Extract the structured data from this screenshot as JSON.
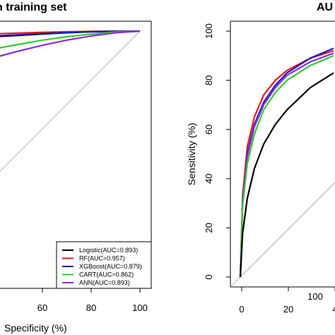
{
  "chart_data": [
    {
      "type": "line",
      "title": "n training set",
      "xlabel": "Specificity (%)",
      "ylabel": "",
      "xlim": [
        100,
        0
      ],
      "ylim": [
        0,
        100
      ],
      "x_ticks": [
        "60",
        "80",
        "100"
      ],
      "y_ticks": [],
      "grid": false,
      "legend_position": "bottom-right",
      "legend": [
        {
          "label": "Logistic(AUC=0.893)",
          "color": "#000000"
        },
        {
          "label": "RF(AUC=0.957)",
          "color": "#e41a1c"
        },
        {
          "label": "XGBoost(AUC=0.879)",
          "color": "#1f1fb4"
        },
        {
          "label": "CART(AUC=0.862)",
          "color": "#33cc33"
        },
        {
          "label": "ANN(AUC=0.893)",
          "color": "#8a2be2"
        }
      ],
      "series": [
        {
          "name": "Logistic(AUC=0.893)",
          "color": "#000000",
          "x": [
            36,
            50,
            60,
            70,
            80,
            90,
            100
          ],
          "y": [
            97.5,
            98.2,
            98.8,
            99.3,
            99.7,
            99.9,
            100
          ]
        },
        {
          "name": "RF(AUC=0.957)",
          "color": "#e41a1c",
          "x": [
            36,
            50,
            60,
            70,
            80,
            90,
            100
          ],
          "y": [
            98.8,
            99.2,
            99.5,
            99.7,
            99.9,
            100,
            100
          ]
        },
        {
          "name": "XGBoost(AUC=0.879)",
          "color": "#1f1fb4",
          "x": [
            36,
            50,
            60,
            70,
            80,
            90,
            100
          ],
          "y": [
            97.8,
            98.5,
            99.0,
            99.4,
            99.7,
            99.9,
            100
          ]
        },
        {
          "name": "CART(AUC=0.862)",
          "color": "#33cc33",
          "x": [
            36,
            50,
            60,
            70,
            80,
            90,
            100
          ],
          "y": [
            92.0,
            94.5,
            96.3,
            97.7,
            98.8,
            99.6,
            100
          ]
        },
        {
          "name": "ANN(AUC=0.893)",
          "color": "#8a2be2",
          "x": [
            36,
            50,
            60,
            70,
            80,
            90,
            100
          ],
          "y": [
            88.0,
            91.8,
            94.2,
            96.3,
            98.0,
            99.3,
            100
          ]
        }
      ]
    },
    {
      "type": "line",
      "title": "AU",
      "xlabel": "",
      "ylabel": "Sensitivity (%)",
      "xlim": [
        100,
        0
      ],
      "ylim": [
        0,
        100
      ],
      "x_ticks": [
        "0",
        "20",
        "4"
      ],
      "y_ticks": [
        "0",
        "20",
        "40",
        "60",
        "80",
        "100"
      ],
      "extra_text": "100",
      "grid": false,
      "series": [
        {
          "name": "RF",
          "color": "#e41a1c",
          "x": [
            0,
            1,
            3,
            6,
            10,
            15,
            20,
            30,
            40
          ],
          "y": [
            0,
            33,
            53,
            65,
            74,
            80,
            84,
            89,
            92
          ]
        },
        {
          "name": "XGBoost",
          "color": "#1f1fb4",
          "x": [
            0,
            1,
            3,
            6,
            10,
            15,
            20,
            30,
            40
          ],
          "y": [
            0,
            31,
            50,
            62,
            71,
            78,
            83,
            89,
            93
          ]
        },
        {
          "name": "ANN",
          "color": "#8a2be2",
          "x": [
            0,
            1,
            3,
            6,
            10,
            15,
            20,
            30,
            40
          ],
          "y": [
            0,
            30,
            49,
            61,
            70,
            77,
            82,
            87.5,
            91
          ]
        },
        {
          "name": "CART",
          "color": "#33cc33",
          "x": [
            0,
            1,
            3,
            6,
            10,
            15,
            20,
            30,
            40
          ],
          "y": [
            0,
            29,
            46,
            58,
            68,
            75,
            80,
            86,
            90
          ]
        },
        {
          "name": "Logistic",
          "color": "#000000",
          "x": [
            0,
            1,
            3,
            6,
            10,
            15,
            20,
            30,
            40
          ],
          "y": [
            0,
            18,
            32,
            44,
            54,
            62,
            68,
            77,
            83
          ]
        }
      ]
    }
  ]
}
